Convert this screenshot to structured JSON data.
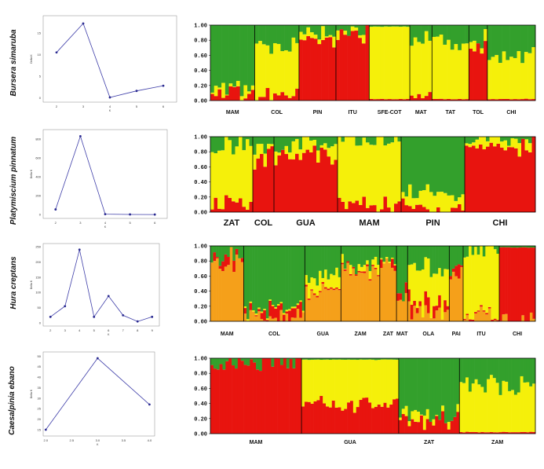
{
  "colors": {
    "green": "#33a02c",
    "yellow": "#f5f00a",
    "red": "#e8140f",
    "orange": "#f5a01a",
    "line": "#3d3da8",
    "marker": "#2a2a90"
  },
  "chart_data": [
    {
      "type": "line",
      "species": "Bursera simaruba",
      "x": [
        2,
        3,
        4,
        5,
        6
      ],
      "y": [
        10.5,
        17.2,
        0.1,
        1.6,
        2.8
      ],
      "xticks": [
        "2",
        "3",
        "4",
        "5",
        "6"
      ],
      "yticks": [
        "0",
        "5",
        "10",
        "15"
      ],
      "xlim": [
        1.5,
        6.5
      ],
      "ylim": [
        -1,
        19
      ],
      "xlabel": "K",
      "ylabel": "Delta K"
    },
    {
      "type": "bar",
      "stacked": true,
      "species": "Bursera simaruba",
      "yticks": [
        "0.00",
        "0.20",
        "0.40",
        "0.60",
        "0.80",
        "1.00"
      ],
      "ylim": [
        0,
        1
      ],
      "series": [
        "green",
        "yellow",
        "red"
      ],
      "groups": [
        {
          "label": "MAM",
          "n": 12,
          "v": [
            [
              0.8,
              0.1,
              0.1
            ]
          ]
        },
        {
          "label": "COL",
          "n": 12,
          "v": [
            [
              0.3,
              0.66,
              0.04
            ]
          ]
        },
        {
          "label": "PIN",
          "n": 10,
          "v": [
            [
              0.1,
              0.05,
              0.85
            ]
          ]
        },
        {
          "label": "ITU",
          "n": 9,
          "v": [
            [
              0.05,
              0.05,
              0.9
            ]
          ]
        },
        {
          "label": "SFE-COT",
          "n": 11,
          "v": [
            [
              0.02,
              0.96,
              0.02
            ]
          ]
        },
        {
          "label": "MAT",
          "n": 6,
          "v": [
            [
              0.15,
              0.82,
              0.03
            ]
          ]
        },
        {
          "label": "TAT",
          "n": 10,
          "v": [
            [
              0.25,
              0.73,
              0.02
            ]
          ]
        },
        {
          "label": "TOL",
          "n": 5,
          "v": [
            [
              0.2,
              0.05,
              0.75
            ]
          ]
        },
        {
          "label": "CHI",
          "n": 13,
          "v": [
            [
              0.4,
              0.58,
              0.02
            ]
          ]
        }
      ]
    },
    {
      "type": "line",
      "species": "Platymiscium pinnatum",
      "x": [
        2,
        3,
        4,
        5,
        6
      ],
      "y": [
        55,
        830,
        5,
        2,
        1
      ],
      "xticks": [
        "2",
        "3",
        "4",
        "5",
        "6"
      ],
      "yticks": [
        "0",
        "200",
        "400",
        "600",
        "800"
      ],
      "xlim": [
        1.5,
        6.5
      ],
      "ylim": [
        -40,
        900
      ],
      "xlabel": "K",
      "ylabel": "Delta K"
    },
    {
      "type": "bar",
      "stacked": true,
      "species": "Platymiscium pinnatum",
      "yticks": [
        "0.00",
        "0.20",
        "0.40",
        "0.60",
        "0.80",
        "1.00"
      ],
      "ylim": [
        0,
        1
      ],
      "series": [
        "green",
        "yellow",
        "red"
      ],
      "groups": [
        {
          "label": "ZAT",
          "n": 12,
          "v": [
            [
              0.12,
              0.78,
              0.1
            ]
          ]
        },
        {
          "label": "COL",
          "n": 6,
          "v": [
            [
              0.15,
              0.1,
              0.75
            ]
          ]
        },
        {
          "label": "GUA",
          "n": 18,
          "v": [
            [
              0.1,
              0.15,
              0.75
            ]
          ]
        },
        {
          "label": "MAM",
          "n": 18,
          "v": [
            [
              0.03,
              0.85,
              0.12
            ]
          ]
        },
        {
          "label": "PIN",
          "n": 18,
          "v": [
            [
              0.75,
              0.2,
              0.05
            ]
          ]
        },
        {
          "label": "CHI",
          "n": 20,
          "v": [
            [
              0.05,
              0.1,
              0.85
            ]
          ]
        }
      ]
    },
    {
      "type": "line",
      "species": "Hura creptans",
      "x": [
        2,
        3,
        4,
        5,
        6,
        7,
        8,
        9
      ],
      "y": [
        20,
        55,
        240,
        20,
        88,
        25,
        5,
        20
      ],
      "xticks": [
        "2",
        "3",
        "4",
        "5",
        "6",
        "7",
        "8",
        "9"
      ],
      "yticks": [
        "0",
        "50",
        "100",
        "150",
        "200",
        "250"
      ],
      "xlim": [
        1.5,
        9.5
      ],
      "ylim": [
        -10,
        260
      ],
      "xlabel": "K",
      "ylabel": "Delta K"
    },
    {
      "type": "bar",
      "stacked": true,
      "species": "Hura creptans",
      "yticks": [
        "0.00",
        "0.20",
        "0.40",
        "0.60",
        "0.80",
        "1.00"
      ],
      "ylim": [
        0,
        1
      ],
      "series": [
        "green",
        "yellow",
        "red",
        "orange"
      ],
      "groups": [
        {
          "label": "MAM",
          "n": 12,
          "v": [
            [
              0.15,
              0.0,
              0.03,
              0.82
            ]
          ]
        },
        {
          "label": "COL",
          "n": 22,
          "v": [
            [
              0.85,
              0.02,
              0.1,
              0.03
            ]
          ]
        },
        {
          "label": "GUA",
          "n": 13,
          "v": [
            [
              0.4,
              0.18,
              0.02,
              0.4
            ]
          ]
        },
        {
          "label": "ZAM",
          "n": 14,
          "v": [
            [
              0.25,
              0.03,
              0.02,
              0.7
            ]
          ]
        },
        {
          "label": "ZAT",
          "n": 6,
          "v": [
            [
              0.15,
              0.02,
              0.03,
              0.8
            ]
          ]
        },
        {
          "label": "MAT",
          "n": 4,
          "v": [
            [
              0.6,
              0.0,
              0.05,
              0.35
            ]
          ]
        },
        {
          "label": "OLA",
          "n": 15,
          "v": [
            [
              0.3,
              0.45,
              0.1,
              0.15
            ]
          ]
        },
        {
          "label": "PAI",
          "n": 5,
          "v": [
            [
              0.3,
              0.0,
              0.15,
              0.55
            ]
          ]
        },
        {
          "label": "ITU",
          "n": 13,
          "v": [
            [
              0.05,
              0.88,
              0.02,
              0.05
            ]
          ]
        },
        {
          "label": "CHI",
          "n": 13,
          "v": [
            [
              0.02,
              0.0,
              0.95,
              0.03
            ]
          ]
        }
      ]
    },
    {
      "type": "line",
      "species": "Caesalpinia ebano",
      "x": [
        2.0,
        3.0,
        4.0
      ],
      "y": [
        15,
        49,
        27
      ],
      "xticks": [
        "2.0",
        "2.5",
        "3.0",
        "3.5",
        "4.0"
      ],
      "yticks": [
        "15",
        "20",
        "25",
        "30",
        "35",
        "40",
        "45",
        "50"
      ],
      "xlim": [
        1.95,
        4.1
      ],
      "ylim": [
        12,
        52
      ],
      "xlabel": "K",
      "ylabel": "Delta K"
    },
    {
      "type": "bar",
      "stacked": true,
      "species": "Caesalpinia ebano",
      "yticks": [
        "0.00",
        "0.20",
        "0.40",
        "0.60",
        "0.80",
        "1.00"
      ],
      "ylim": [
        0,
        1
      ],
      "series": [
        "green",
        "yellow",
        "red"
      ],
      "groups": [
        {
          "label": "MAM",
          "n": 30,
          "v": [
            [
              0.05,
              0.0,
              0.95
            ]
          ]
        },
        {
          "label": "GUA",
          "n": 32,
          "v": [
            [
              0.02,
              0.6,
              0.38
            ]
          ]
        },
        {
          "label": "ZAT",
          "n": 20,
          "v": [
            [
              0.75,
              0.05,
              0.2
            ]
          ]
        },
        {
          "label": "ZAM",
          "n": 25,
          "v": [
            [
              0.35,
              0.63,
              0.02
            ]
          ]
        }
      ]
    }
  ]
}
